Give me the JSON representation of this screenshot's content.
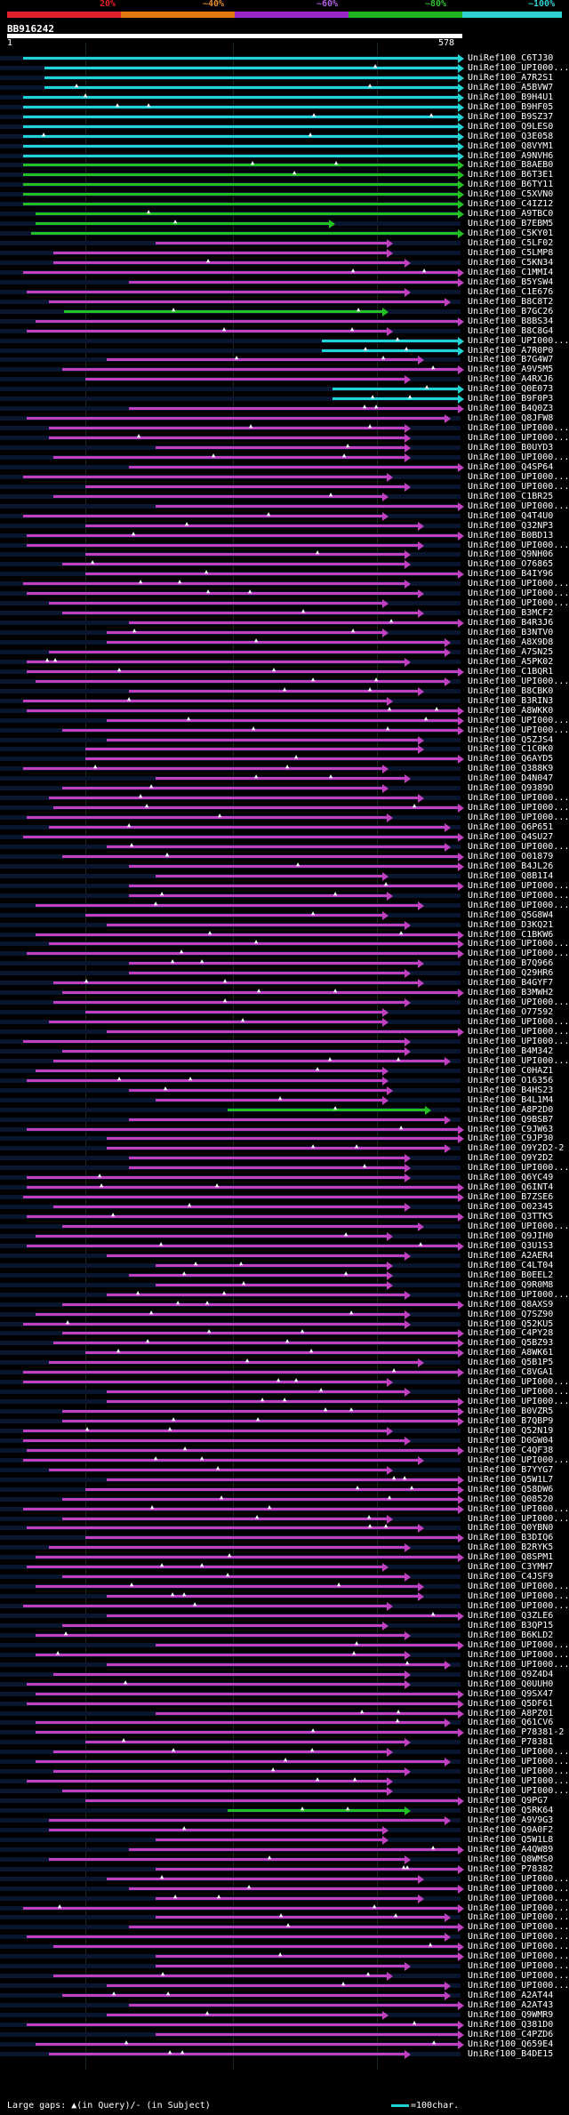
{
  "header": {
    "scale_labels": [
      "20%",
      "~40%",
      "~60%",
      "~80%",
      "~100%"
    ],
    "band_colors": [
      "#e0202a",
      "#e07a10",
      "#9a28c8",
      "#1fb31f",
      "#2fd0d0"
    ],
    "query_id": "BB916242",
    "ruler_start": "1",
    "ruler_end": "578"
  },
  "legend": {
    "gaps": "Large gaps: ▲(in Query)/- (in Subject)",
    "swatch": "=100char."
  },
  "hits": [
    "UniRef100_C6TJ30",
    "UniRef100_UPI000...",
    "UniRef100_A7R2S1",
    "UniRef100_A5BVW7",
    "UniRef100_B9H4U1",
    "UniRef100_B9HF05",
    "UniRef100_B9SZ37",
    "UniRef100_Q9LES0",
    "UniRef100_Q3E058",
    "UniRef100_Q8VYM1",
    "UniRef100_A9NVH6",
    "UniRef100_B8AEB0",
    "UniRef100_B6T3E1",
    "UniRef100_B6TY11",
    "UniRef100_C5XVN0",
    "UniRef100_C4IZ12",
    "UniRef100_A9TBC0",
    "UniRef100_B7EBM5",
    "UniRef100_C5KY01",
    "UniRef100_C5LF02",
    "UniRef100_C5LMP8",
    "UniRef100_C5KN34",
    "UniRef100_C1MMI4",
    "UniRef100_B5YSW4",
    "UniRef100_C1E676",
    "UniRef100_B8C8T2",
    "UniRef100_B7GC26",
    "UniRef100_B8BS34",
    "UniRef100_B8C8G4",
    "UniRef100_UPI000...",
    "UniRef100_A7R0P0",
    "UniRef100_B7G4W7",
    "UniRef100_A9V5M5",
    "UniRef100_A4RXJ6",
    "UniRef100_Q0E073",
    "UniRef100_B9F0P3",
    "UniRef100_B4Q0Z3",
    "UniRef100_Q8JFW8",
    "UniRef100_UPI000...",
    "UniRef100_UPI000...",
    "UniRef100_B0UYD3",
    "UniRef100_UPI000...",
    "UniRef100_Q4SP64",
    "UniRef100_UPI000...",
    "UniRef100_UPI000...",
    "UniRef100_C1BR25",
    "UniRef100_UPI000...",
    "UniRef100_Q4T4U0",
    "UniRef100_Q32NP3",
    "UniRef100_B0BD13",
    "UniRef100_UPI000...",
    "UniRef100_Q9NH06",
    "UniRef100_O76865",
    "UniRef100_B4IY96",
    "UniRef100_UPI000...",
    "UniRef100_UPI000...",
    "UniRef100_UPI000...",
    "UniRef100_B3MCF2",
    "UniRef100_B4R3J6",
    "UniRef100_B3NTV0",
    "UniRef100_A8X9D8",
    "UniRef100_A7SN25",
    "UniRef100_A5PK02",
    "UniRef100_C1BQR1",
    "UniRef100_UPI000...",
    "UniRef100_B8CBK0",
    "UniRef100_B3RIN3",
    "UniRef100_A8WKK0",
    "UniRef100_UPI000...",
    "UniRef100_UPI000...",
    "UniRef100_Q5ZJS4",
    "UniRef100_C1C0K0",
    "UniRef100_Q6AYD5",
    "UniRef100_Q388K9",
    "UniRef100_D4N047",
    "UniRef100_Q9389O",
    "UniRef100_UPI000...",
    "UniRef100_UPI000...",
    "UniRef100_UPI000...",
    "UniRef100_Q6P651",
    "UniRef100_Q4SU27",
    "UniRef100_UPI000...",
    "UniRef100_O01879",
    "UniRef100_B4JL26",
    "UniRef100_Q8B1I4",
    "UniRef100_UPI000...",
    "UniRef100_UPI000...",
    "UniRef100_UPI000...",
    "UniRef100_Q5G8W4",
    "UniRef100_D3KQ21",
    "UniRef100_C1BKW6",
    "UniRef100_UPI000...",
    "UniRef100_UPI000...",
    "UniRef100_B7Q966",
    "UniRef100_Q29HR6",
    "UniRef100_B4GYF7",
    "UniRef100_B3MWH2",
    "UniRef100_UPI000...",
    "UniRef100_O77592",
    "UniRef100_UPI000...",
    "UniRef100_UPI000...",
    "UniRef100_UPI000...",
    "UniRef100_B4M342",
    "UniRef100_UPI000...",
    "UniRef100_C0HAZ1",
    "UniRef100_O16356",
    "UniRef100_B4HS23",
    "UniRef100_B4L1M4",
    "UniRef100_A8P2D0",
    "UniRef100_Q9BSB7",
    "UniRef100_C9JW63",
    "UniRef100_C9JP30",
    "UniRef100_Q9Y2D2-2",
    "UniRef100_Q9Y2D2",
    "UniRef100_UPI000...",
    "UniRef100_Q6YC49",
    "UniRef100_Q6INT4",
    "UniRef100_B7ZSE6",
    "UniRef100_O02345",
    "UniRef100_Q3TTK5",
    "UniRef100_UPI000...",
    "UniRef100_Q9JIH0",
    "UniRef100_Q3U1S3",
    "UniRef100_A2AER4",
    "UniRef100_C4LT04",
    "UniRef100_B0EEL2",
    "UniRef100_Q9R0M8",
    "UniRef100_UPI000...",
    "UniRef100_Q8AXS9",
    "UniRef100_Q7SZ90",
    "UniRef100_Q52KU5",
    "UniRef100_C4PY28",
    "UniRef100_Q5BZ93",
    "UniRef100_A8WK61",
    "UniRef100_Q5B1P5",
    "UniRef100_C8VGA1",
    "UniRef100_UPI000...",
    "UniRef100_UPI000...",
    "UniRef100_UPI000...",
    "UniRef100_B0VZR5",
    "UniRef100_B7QBP9",
    "UniRef100_Q52N19",
    "UniRef100_D0GW04",
    "UniRef100_C4QF38",
    "UniRef100_UPI000...",
    "UniRef100_B7YYG7",
    "UniRef100_Q5W1L7",
    "UniRef100_Q58DW6",
    "UniRef100_Q08520",
    "UniRef100_UPI000...",
    "UniRef100_UPI000...",
    "UniRef100_Q0YBN0",
    "UniRef100_B3DIQ6",
    "UniRef100_B2RYK5",
    "UniRef100_Q8SPM1",
    "UniRef100_C3YMH7",
    "UniRef100_C4JSF9",
    "UniRef100_UPI000...",
    "UniRef100_UPI000...",
    "UniRef100_UPI000...",
    "UniRef100_Q3ZLE6",
    "UniRef100_B3QP15",
    "UniRef100_B6KLD2",
    "UniRef100_UPI000...",
    "UniRef100_UPI000...",
    "UniRef100_UPI000...",
    "UniRef100_Q9Z4D4",
    "UniRef100_Q0UUH0",
    "UniRef100_Q9SX47",
    "UniRef100_Q5DF61",
    "UniRef100_A8PZ01",
    "UniRef100_Q61CV6",
    "UniRef100_P78381-2",
    "UniRef100_P78381",
    "UniRef100_UPI000...",
    "UniRef100_UPI000...",
    "UniRef100_UPI000...",
    "UniRef100_UPI000...",
    "UniRef100_UPI000...",
    "UniRef100_Q9PG7",
    "UniRef100_Q5RK64",
    "UniRef100_A9V9G3",
    "UniRef100_Q9A0F2",
    "UniRef100_Q5W1L8",
    "UniRef100_A4QW89",
    "UniRef100_Q8WMS0",
    "UniRef100_P78382",
    "UniRef100_UPI000...",
    "UniRef100_UPI000...",
    "UniRef100_UPI000...",
    "UniRef100_UPI000...",
    "UniRef100_UPI000...",
    "UniRef100_UPI000...",
    "UniRef100_UPI000...",
    "UniRef100_UPI000...",
    "UniRef100_UPI000...",
    "UniRef100_UPI000...",
    "UniRef100_UPI000...",
    "UniRef100_UPI000...",
    "UniRef100_A2AT44",
    "UniRef100_A2AT43",
    "UniRef100_Q9WMR9",
    "UniRef100_Q381D0",
    "UniRef100_C4PZD6",
    "UniRef100_Q659E4",
    "UniRef100_B4DE15"
  ]
}
